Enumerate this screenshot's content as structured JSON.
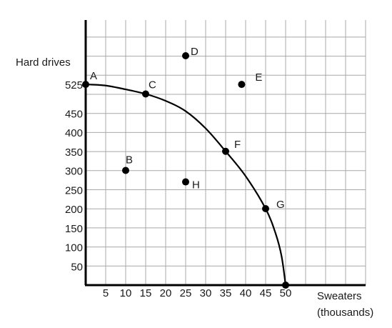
{
  "chart_data": {
    "type": "scatter",
    "ylabel": "Hard drives",
    "xlabel_line1": "Sweaters",
    "xlabel_line2": "(thousands)",
    "x_ticks": [
      5,
      10,
      15,
      20,
      25,
      30,
      35,
      40,
      45,
      50
    ],
    "y_ticks": [
      50,
      100,
      150,
      200,
      250,
      300,
      350,
      400,
      450,
      525
    ],
    "grid": true,
    "curve": [
      {
        "x": 0,
        "y": 525
      },
      {
        "x": 5,
        "y": 522
      },
      {
        "x": 10,
        "y": 512
      },
      {
        "x": 15,
        "y": 500
      },
      {
        "x": 20,
        "y": 482
      },
      {
        "x": 25,
        "y": 455
      },
      {
        "x": 30,
        "y": 410
      },
      {
        "x": 35,
        "y": 350
      },
      {
        "x": 40,
        "y": 285
      },
      {
        "x": 45,
        "y": 200
      },
      {
        "x": 47.5,
        "y": 135
      },
      {
        "x": 49,
        "y": 75
      },
      {
        "x": 50,
        "y": 0
      }
    ],
    "points": [
      {
        "label": "A",
        "x": 0,
        "y": 525
      },
      {
        "label": "B",
        "x": 10,
        "y": 300
      },
      {
        "label": "C",
        "x": 15,
        "y": 500
      },
      {
        "label": "D",
        "x": 25,
        "y": 600
      },
      {
        "label": "E",
        "x": 39,
        "y": 525
      },
      {
        "label": "F",
        "x": 35,
        "y": 350
      },
      {
        "label": "G",
        "x": 45,
        "y": 200
      },
      {
        "label": "H",
        "x": 25,
        "y": 270
      },
      {
        "label": "",
        "x": 50,
        "y": 0
      }
    ]
  }
}
